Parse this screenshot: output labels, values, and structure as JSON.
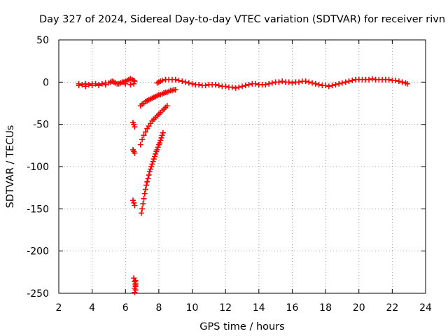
{
  "chart_data": {
    "type": "scatter",
    "title": "Day 327 of 2024, Sidereal Day-to-day VTEC variation (SDTVAR) for receiver rivn",
    "xlabel": "GPS time / hours",
    "ylabel": "SDTVAR / TECUs",
    "xlim": [
      2,
      24
    ],
    "ylim": [
      -250,
      50
    ],
    "xticks": [
      2,
      4,
      6,
      8,
      10,
      12,
      14,
      16,
      18,
      20,
      22,
      24
    ],
    "yticks": [
      50,
      0,
      -50,
      -100,
      -150,
      -200,
      -250
    ],
    "grid": true,
    "marker": "+",
    "color": "#ff0000",
    "series": [
      {
        "x": [
          3.2,
          3.4,
          3.6,
          3.8,
          4.0,
          4.2,
          4.4,
          4.6,
          4.8,
          5.0,
          5.1,
          5.2,
          5.3,
          5.4,
          5.5,
          5.6,
          5.7,
          5.8,
          5.9,
          6.0,
          6.1,
          6.2,
          6.3,
          6.4,
          6.5,
          6.55,
          7.9,
          8.0,
          8.1,
          8.2,
          8.4,
          8.6,
          8.8,
          9.0,
          9.2,
          9.4,
          9.6,
          9.8,
          10.0,
          10.2,
          10.4,
          10.6,
          10.8,
          11.0,
          11.2,
          11.4,
          11.6,
          11.8,
          12.0,
          12.2,
          12.4,
          12.6,
          12.8,
          13.0,
          13.2,
          13.4,
          13.6,
          13.8,
          14.0,
          14.2,
          14.4,
          14.6,
          14.8,
          15.0,
          15.2,
          15.4,
          15.6,
          15.8,
          16.0,
          16.2,
          16.4,
          16.6,
          16.8,
          17.0,
          17.2,
          17.4,
          17.6,
          17.8,
          18.0,
          18.2,
          18.4,
          18.6,
          18.8,
          19.0,
          19.2,
          19.4,
          19.6,
          19.8,
          20.0,
          20.2,
          20.4,
          20.6,
          20.8,
          21.0,
          21.2,
          21.4,
          21.6,
          21.8,
          22.0,
          22.2,
          22.4,
          22.6,
          22.8,
          22.9,
          3.2,
          3.6,
          4.0,
          4.4,
          4.8,
          5.7,
          6.0,
          6.3,
          6.5
        ],
        "y": [
          -2,
          -3,
          -2,
          -3,
          -2,
          -2,
          -3,
          -2,
          -1,
          -1,
          0,
          1,
          0,
          -1,
          -2,
          -2,
          -1,
          0,
          0,
          1,
          2,
          3,
          4,
          3,
          2,
          1,
          -1,
          0,
          1,
          2,
          3,
          3,
          3,
          3,
          2,
          1,
          0,
          -1,
          -2,
          -3,
          -3,
          -4,
          -4,
          -3,
          -3,
          -3,
          -4,
          -5,
          -5,
          -6,
          -6,
          -7,
          -6,
          -5,
          -4,
          -3,
          -2,
          -2,
          -3,
          -3,
          -3,
          -2,
          -1,
          0,
          0,
          1,
          0,
          0,
          -1,
          0,
          0,
          1,
          1,
          0,
          -1,
          -2,
          -3,
          -4,
          -4,
          -5,
          -4,
          -3,
          -2,
          -1,
          0,
          1,
          2,
          3,
          3,
          3,
          3,
          3,
          4,
          3,
          3,
          3,
          3,
          3,
          2,
          2,
          1,
          0,
          -1,
          -2,
          -4,
          -5,
          -4,
          -4,
          -3,
          -1,
          -2,
          -3,
          -2
        ],
        "name": ""
      },
      {
        "x": [
          6.9,
          7.0,
          7.1,
          7.2,
          7.3,
          7.4,
          7.5,
          7.6,
          7.7,
          7.8,
          7.9,
          8.0,
          8.1,
          8.2,
          8.3,
          8.4,
          8.5,
          8.6,
          8.7,
          8.8,
          8.9,
          9.0
        ],
        "y": [
          -28,
          -26,
          -25,
          -23,
          -22,
          -21,
          -20,
          -19,
          -18,
          -17,
          -16,
          -15,
          -15,
          -14,
          -13,
          -12,
          -12,
          -11,
          -10,
          -10,
          -9,
          -9
        ],
        "name": ""
      },
      {
        "x": [
          6.9,
          7.0,
          7.1,
          7.2,
          7.3,
          7.4,
          7.5,
          7.6,
          7.7,
          7.8,
          7.9,
          8.0,
          8.1,
          8.2,
          8.3,
          8.4,
          8.5
        ],
        "y": [
          -74,
          -68,
          -63,
          -59,
          -55,
          -52,
          -49,
          -46,
          -44,
          -42,
          -40,
          -38,
          -36,
          -34,
          -32,
          -30,
          -28
        ],
        "name": ""
      },
      {
        "x": [
          6.95,
          7.0,
          7.05,
          7.1,
          7.15,
          7.2,
          7.25,
          7.3,
          7.35,
          7.4,
          7.45,
          7.5,
          7.55,
          7.6,
          7.65,
          7.7,
          7.75,
          7.8,
          7.85,
          7.9,
          7.95,
          8.0,
          8.05,
          8.1,
          8.15,
          8.2,
          8.25
        ],
        "y": [
          -155,
          -150,
          -144,
          -138,
          -132,
          -127,
          -122,
          -118,
          -114,
          -110,
          -106,
          -103,
          -100,
          -97,
          -94,
          -91,
          -88,
          -85,
          -82,
          -80,
          -77,
          -74,
          -72,
          -69,
          -66,
          -63,
          -60
        ],
        "name": ""
      },
      {
        "x": [
          6.45,
          6.5,
          6.55,
          6.45,
          6.5,
          6.55,
          6.45,
          6.5,
          6.55,
          6.5,
          6.55,
          6.6,
          6.55,
          6.6,
          6.55,
          6.6,
          6.6,
          6.6
        ],
        "y": [
          -48,
          -50,
          -53,
          -80,
          -82,
          -84,
          -140,
          -143,
          -146,
          -232,
          -236,
          -240,
          -244,
          -246,
          -249,
          -235,
          -238,
          -242
        ],
        "name": ""
      }
    ]
  }
}
